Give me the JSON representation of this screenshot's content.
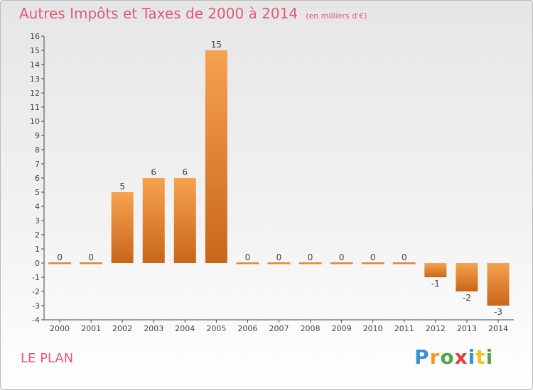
{
  "header": {
    "title": "Autres Impôts et Taxes de 2000 à 2014",
    "subtitle": "(en milliers d'€)"
  },
  "footer": {
    "place": "LE PLAN"
  },
  "logo": {
    "text": "Proxiti",
    "letters": [
      {
        "ch": "P",
        "color": "#3a8fd6"
      },
      {
        "ch": "r",
        "color": "#f39a1e"
      },
      {
        "ch": "o",
        "color": "#4aa84a"
      },
      {
        "ch": "x",
        "color": "#e0403a"
      },
      {
        "ch": "i",
        "color": "#3a8fd6"
      },
      {
        "ch": "t",
        "color": "#f3c21e"
      },
      {
        "ch": "i",
        "color": "#4aa84a"
      }
    ]
  },
  "chart_data": {
    "type": "bar",
    "title": "Autres Impôts et Taxes de 2000 à 2014",
    "subtitle": "(en milliers d'€)",
    "categories": [
      "2000",
      "2001",
      "2002",
      "2003",
      "2004",
      "2005",
      "2006",
      "2007",
      "2008",
      "2009",
      "2010",
      "2011",
      "2012",
      "2013",
      "2014"
    ],
    "values": [
      0,
      0,
      5,
      6,
      6,
      15,
      0,
      0,
      0,
      0,
      0,
      0,
      -1,
      -2,
      -3
    ],
    "data_labels": [
      "0",
      "0",
      "5",
      "6",
      "6",
      "15",
      "0",
      "0",
      "0",
      "0",
      "0",
      "0",
      "-1",
      "-2",
      "-3"
    ],
    "ylim": [
      -4,
      16
    ],
    "yticks": [
      -4,
      -3,
      -2,
      -1,
      0,
      1,
      2,
      3,
      4,
      5,
      6,
      7,
      8,
      9,
      10,
      11,
      12,
      13,
      14,
      15,
      16
    ],
    "ytick_labels": [
      "-4",
      "-3",
      "-2",
      "-1",
      "0",
      "1",
      "2",
      "3",
      "4",
      "5",
      "6",
      "7",
      "8",
      "9",
      "10",
      "11",
      "12",
      "13",
      "14",
      "15",
      "16"
    ],
    "grid": false,
    "colors": {
      "bar_light": "#f7a24e",
      "bar_dark": "#c8661a",
      "axis": "#444444",
      "text": "#444444",
      "title": "#e05a78"
    }
  }
}
